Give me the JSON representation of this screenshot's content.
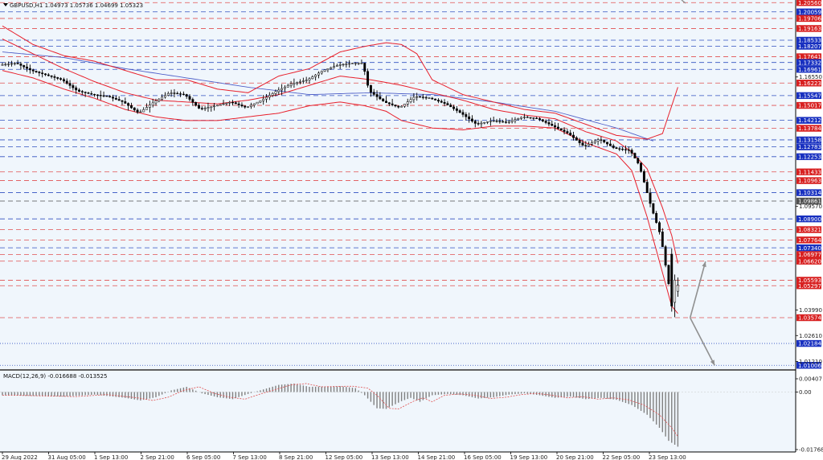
{
  "main_title": "GBPUSD,H1  1.04973 1.05736 1.04699 1.05323",
  "macd_title": "MACD(12,26,9) -0.016688 -0.013525",
  "colors": {
    "bg": "#f0f6fc",
    "candle": "#000000",
    "bb": "#e8202c",
    "ma": "#5060c8",
    "dash_red": "#e05050",
    "dash_blue": "#3050c0",
    "label_red": "#d82020",
    "label_blue": "#1830c0",
    "label_gray": "#505050",
    "macd_hist": "#808080",
    "macd_signal": "#e05050",
    "arrow": "#909090"
  },
  "chart_data": [
    {
      "type": "candlestick",
      "symbol": "GBPUSD",
      "timeframe": "H1",
      "ylim": [
        1.008,
        1.207
      ],
      "x_ticks": [
        "29 Aug 2022",
        "31 Aug 05:00",
        "1 Sep 13:00",
        "2 Sep 21:00",
        "6 Sep 05:00",
        "7 Sep 13:00",
        "8 Sep 21:00",
        "12 Sep 05:00",
        "13 Sep 13:00",
        "14 Sep 21:00",
        "16 Sep 05:00",
        "19 Sep 13:00",
        "20 Sep 21:00",
        "22 Sep 05:00",
        "23 Sep 13:00"
      ],
      "price_path": [
        [
          0,
          1.172
        ],
        [
          5,
          1.173
        ],
        [
          10,
          1.169
        ],
        [
          15,
          1.1665
        ],
        [
          20,
          1.164
        ],
        [
          25,
          1.158
        ],
        [
          30,
          1.156
        ],
        [
          35,
          1.155
        ],
        [
          40,
          1.152
        ],
        [
          45,
          1.146
        ],
        [
          50,
          1.152
        ],
        [
          55,
          1.157
        ],
        [
          60,
          1.156
        ],
        [
          65,
          1.148
        ],
        [
          70,
          1.15
        ],
        [
          75,
          1.152
        ],
        [
          80,
          1.149
        ],
        [
          85,
          1.153
        ],
        [
          90,
          1.158
        ],
        [
          95,
          1.162
        ],
        [
          100,
          1.164
        ],
        [
          105,
          1.169
        ],
        [
          110,
          1.172
        ],
        [
          115,
          1.173
        ],
        [
          118,
          1.173
        ],
        [
          120,
          1.158
        ],
        [
          125,
          1.152
        ],
        [
          130,
          1.149
        ],
        [
          135,
          1.155
        ],
        [
          140,
          1.154
        ],
        [
          145,
          1.151
        ],
        [
          150,
          1.146
        ],
        [
          155,
          1.14
        ],
        [
          160,
          1.142
        ],
        [
          165,
          1.141
        ],
        [
          170,
          1.144
        ],
        [
          175,
          1.143
        ],
        [
          180,
          1.139
        ],
        [
          185,
          1.135
        ],
        [
          190,
          1.128
        ],
        [
          195,
          1.132
        ],
        [
          200,
          1.127
        ],
        [
          205,
          1.126
        ],
        [
          208,
          1.118
        ],
        [
          212,
          1.095
        ],
        [
          215,
          1.08
        ],
        [
          218,
          1.05
        ],
        [
          220,
          1.0553
        ]
      ],
      "last_candles": [
        {
          "o": 1.07,
          "h": 1.073,
          "l": 1.039,
          "c": 1.042
        },
        {
          "o": 1.044,
          "h": 1.059,
          "l": 1.036,
          "c": 1.056
        },
        {
          "o": 1.05,
          "h": 1.0574,
          "l": 1.047,
          "c": 1.0532
        }
      ],
      "bb_upper": [
        [
          0,
          1.193
        ],
        [
          10,
          1.183
        ],
        [
          20,
          1.177
        ],
        [
          30,
          1.174
        ],
        [
          40,
          1.169
        ],
        [
          50,
          1.164
        ],
        [
          60,
          1.164
        ],
        [
          70,
          1.159
        ],
        [
          80,
          1.157
        ],
        [
          90,
          1.166
        ],
        [
          100,
          1.17
        ],
        [
          110,
          1.179
        ],
        [
          118,
          1.182
        ],
        [
          125,
          1.184
        ],
        [
          130,
          1.183
        ],
        [
          135,
          1.178
        ],
        [
          140,
          1.164
        ],
        [
          150,
          1.156
        ],
        [
          160,
          1.152
        ],
        [
          170,
          1.148
        ],
        [
          180,
          1.146
        ],
        [
          190,
          1.14
        ],
        [
          200,
          1.134
        ],
        [
          210,
          1.132
        ],
        [
          215,
          1.135
        ],
        [
          218,
          1.15
        ],
        [
          220,
          1.16
        ]
      ],
      "bb_middle": [
        [
          0,
          1.186
        ],
        [
          10,
          1.178
        ],
        [
          20,
          1.17
        ],
        [
          30,
          1.163
        ],
        [
          40,
          1.157
        ],
        [
          50,
          1.153
        ],
        [
          60,
          1.152
        ],
        [
          70,
          1.151
        ],
        [
          80,
          1.153
        ],
        [
          90,
          1.156
        ],
        [
          100,
          1.161
        ],
        [
          110,
          1.166
        ],
        [
          120,
          1.164
        ],
        [
          130,
          1.161
        ],
        [
          140,
          1.157
        ],
        [
          150,
          1.153
        ],
        [
          160,
          1.148
        ],
        [
          170,
          1.145
        ],
        [
          180,
          1.143
        ],
        [
          190,
          1.136
        ],
        [
          200,
          1.131
        ],
        [
          205,
          1.125
        ],
        [
          210,
          1.116
        ],
        [
          215,
          1.095
        ],
        [
          218,
          1.08
        ],
        [
          220,
          1.065
        ]
      ],
      "bb_lower": [
        [
          0,
          1.169
        ],
        [
          10,
          1.165
        ],
        [
          20,
          1.159
        ],
        [
          30,
          1.154
        ],
        [
          40,
          1.148
        ],
        [
          50,
          1.144
        ],
        [
          60,
          1.142
        ],
        [
          70,
          1.142
        ],
        [
          80,
          1.144
        ],
        [
          90,
          1.146
        ],
        [
          100,
          1.15
        ],
        [
          110,
          1.152
        ],
        [
          118,
          1.15
        ],
        [
          125,
          1.147
        ],
        [
          130,
          1.142
        ],
        [
          140,
          1.138
        ],
        [
          150,
          1.137
        ],
        [
          160,
          1.139
        ],
        [
          170,
          1.139
        ],
        [
          180,
          1.138
        ],
        [
          190,
          1.13
        ],
        [
          200,
          1.124
        ],
        [
          205,
          1.115
        ],
        [
          210,
          1.09
        ],
        [
          215,
          1.06
        ],
        [
          218,
          1.042
        ],
        [
          220,
          1.038
        ]
      ],
      "moving_average": [
        [
          0,
          1.179
        ],
        [
          20,
          1.176
        ],
        [
          40,
          1.17
        ],
        [
          60,
          1.165
        ],
        [
          80,
          1.16
        ],
        [
          100,
          1.156
        ],
        [
          120,
          1.157
        ],
        [
          140,
          1.156
        ],
        [
          160,
          1.152
        ],
        [
          180,
          1.147
        ],
        [
          200,
          1.138
        ],
        [
          212,
          1.131
        ]
      ],
      "levels": [
        {
          "price": 1.2056,
          "label": "1.20560",
          "color": "red",
          "style": "dashed"
        },
        {
          "price": 1.20059,
          "label": "1.20059",
          "color": "blue",
          "style": "dashed"
        },
        {
          "price": 1.19706,
          "label": "1.19706",
          "color": "red",
          "style": "dashed"
        },
        {
          "price": 1.19163,
          "label": "1.19163",
          "color": "red",
          "style": "dashed"
        },
        {
          "price": 1.18533,
          "label": "1.18533",
          "color": "blue",
          "style": "dashed"
        },
        {
          "price": 1.18207,
          "label": "1.18207",
          "color": "blue",
          "style": "dashed"
        },
        {
          "price": 1.17641,
          "label": "1.17641",
          "color": "red",
          "style": "dashed"
        },
        {
          "price": 1.17332,
          "label": "1.17332",
          "color": "blue",
          "style": "dashed"
        },
        {
          "price": 1.16961,
          "label": "1.16961",
          "color": "blue",
          "style": "dashed"
        },
        {
          "price": 1.16223,
          "label": "1.16223",
          "color": "red",
          "style": "dashed"
        },
        {
          "price": 1.15547,
          "label": "1.15547",
          "color": "blue",
          "style": "dashed"
        },
        {
          "price": 1.15017,
          "label": "1.15017",
          "color": "red",
          "style": "dashed"
        },
        {
          "price": 1.14212,
          "label": "1.14212",
          "color": "blue",
          "style": "dashed"
        },
        {
          "price": 1.13784,
          "label": "1.13784",
          "color": "red",
          "style": "dashed"
        },
        {
          "price": 1.13158,
          "label": "1.13158",
          "color": "blue",
          "style": "dashed"
        },
        {
          "price": 1.12783,
          "label": "1.12783",
          "color": "blue",
          "style": "dashed"
        },
        {
          "price": 1.12253,
          "label": "1.12253",
          "color": "blue",
          "style": "dashed"
        },
        {
          "price": 1.11433,
          "label": "1.11433",
          "color": "red",
          "style": "dashed"
        },
        {
          "price": 1.10963,
          "label": "1.10963",
          "color": "red",
          "style": "dashed"
        },
        {
          "price": 1.10314,
          "label": "1.10314",
          "color": "blue",
          "style": "dashed"
        },
        {
          "price": 1.09861,
          "label": "1.09861",
          "color": "gray",
          "style": "dashed"
        },
        {
          "price": 1.089,
          "label": "1.08900",
          "color": "blue",
          "style": "dashed"
        },
        {
          "price": 1.08321,
          "label": "1.08321",
          "color": "red",
          "style": "dashed"
        },
        {
          "price": 1.07764,
          "label": "1.07764",
          "color": "red",
          "style": "dashed"
        },
        {
          "price": 1.0734,
          "label": "1.07340",
          "color": "blue",
          "style": "dashed"
        },
        {
          "price": 1.06977,
          "label": "1.06977",
          "color": "red",
          "style": "dashed"
        },
        {
          "price": 1.0662,
          "label": "1.06620",
          "color": "red",
          "style": "dashed"
        },
        {
          "price": 1.05593,
          "label": "1.05593",
          "color": "red",
          "style": "dashed"
        },
        {
          "price": 1.05297,
          "label": "1.05297",
          "color": "red",
          "style": "dashed"
        },
        {
          "price": 1.03574,
          "label": "1.03574",
          "color": "red",
          "style": "dashed"
        },
        {
          "price": 1.02184,
          "label": "1.02184",
          "color": "blue",
          "style": "dotted"
        },
        {
          "price": 1.01006,
          "label": "1.01006",
          "color": "blue",
          "style": "dotted"
        }
      ],
      "axis_labels": [
        {
          "price": 1.1655,
          "label": "1.16550"
        },
        {
          "price": 1.0957,
          "label": "1.09570"
        },
        {
          "price": 1.0399,
          "label": "1.03990"
        },
        {
          "price": 1.0261,
          "label": "1.02610"
        },
        {
          "price": 1.0121,
          "label": "1.01210"
        }
      ],
      "projection_arrows": [
        {
          "from": [
            224,
            1.0357
          ],
          "to": [
            229,
            1.066
          ]
        },
        {
          "from": [
            224,
            1.0357
          ],
          "to": [
            232,
            1.01
          ]
        }
      ]
    },
    {
      "type": "bar",
      "name": "MACD(12,26,9)",
      "ylim": [
        -0.01768,
        0.00407
      ],
      "y_ticks": [
        0.00407,
        0.0,
        -0.01768
      ],
      "y_tick_labels": [
        "0.00407",
        "0.00",
        "-0.017683"
      ],
      "macd_path": [
        [
          0,
          -0.001
        ],
        [
          10,
          -0.0012
        ],
        [
          20,
          -0.0014
        ],
        [
          30,
          -0.0008
        ],
        [
          40,
          -0.0018
        ],
        [
          45,
          -0.0026
        ],
        [
          50,
          -0.0016
        ],
        [
          55,
          0.0005
        ],
        [
          60,
          0.0016
        ],
        [
          65,
          -0.0004
        ],
        [
          70,
          -0.0016
        ],
        [
          75,
          -0.0022
        ],
        [
          80,
          -0.0006
        ],
        [
          85,
          0.0008
        ],
        [
          90,
          0.0022
        ],
        [
          95,
          0.0026
        ],
        [
          100,
          0.0016
        ],
        [
          110,
          0.0018
        ],
        [
          115,
          0.0012
        ],
        [
          118,
          -0.001
        ],
        [
          122,
          -0.005
        ],
        [
          125,
          -0.0052
        ],
        [
          130,
          -0.0028
        ],
        [
          133,
          -0.0018
        ],
        [
          136,
          -0.003
        ],
        [
          140,
          -0.001
        ],
        [
          145,
          -0.0006
        ],
        [
          150,
          -0.001
        ],
        [
          155,
          -0.002
        ],
        [
          160,
          -0.0016
        ],
        [
          165,
          -0.0008
        ],
        [
          170,
          -0.0004
        ],
        [
          175,
          -0.001
        ],
        [
          180,
          -0.0018
        ],
        [
          185,
          -0.0014
        ],
        [
          190,
          -0.0022
        ],
        [
          195,
          -0.0018
        ],
        [
          200,
          -0.0024
        ],
        [
          205,
          -0.004
        ],
        [
          210,
          -0.007
        ],
        [
          214,
          -0.011
        ],
        [
          217,
          -0.015
        ],
        [
          220,
          -0.0168
        ]
      ],
      "signal_offset": 4
    }
  ]
}
